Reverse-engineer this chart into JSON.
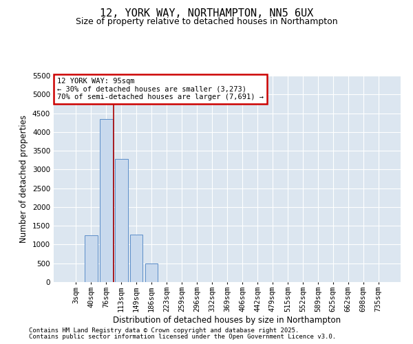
{
  "title": "12, YORK WAY, NORTHAMPTON, NN5 6UX",
  "subtitle": "Size of property relative to detached houses in Northampton",
  "xlabel": "Distribution of detached houses by size in Northampton",
  "ylabel": "Number of detached properties",
  "categories": [
    "3sqm",
    "40sqm",
    "76sqm",
    "113sqm",
    "149sqm",
    "186sqm",
    "223sqm",
    "259sqm",
    "296sqm",
    "332sqm",
    "369sqm",
    "406sqm",
    "442sqm",
    "479sqm",
    "515sqm",
    "552sqm",
    "589sqm",
    "625sqm",
    "662sqm",
    "698sqm",
    "735sqm"
  ],
  "values": [
    0,
    1250,
    4350,
    3280,
    1270,
    490,
    0,
    0,
    0,
    0,
    0,
    0,
    0,
    0,
    0,
    0,
    0,
    0,
    0,
    0,
    0
  ],
  "bar_color": "#c8d9ed",
  "bar_edge_color": "#5b8dc8",
  "vline_x": 2.5,
  "vline_color": "#aa0000",
  "annotation_title": "12 YORK WAY: 95sqm",
  "annotation_line1": "← 30% of detached houses are smaller (3,273)",
  "annotation_line2": "70% of semi-detached houses are larger (7,691) →",
  "annotation_box_color": "#cc0000",
  "ylim": [
    0,
    5500
  ],
  "yticks": [
    0,
    500,
    1000,
    1500,
    2000,
    2500,
    3000,
    3500,
    4000,
    4500,
    5000,
    5500
  ],
  "bg_color": "#dce6f0",
  "grid_color": "#ffffff",
  "footer_line1": "Contains HM Land Registry data © Crown copyright and database right 2025.",
  "footer_line2": "Contains public sector information licensed under the Open Government Licence v3.0.",
  "title_fontsize": 11,
  "subtitle_fontsize": 9,
  "axis_label_fontsize": 8.5,
  "tick_fontsize": 7.5,
  "footer_fontsize": 6.5
}
